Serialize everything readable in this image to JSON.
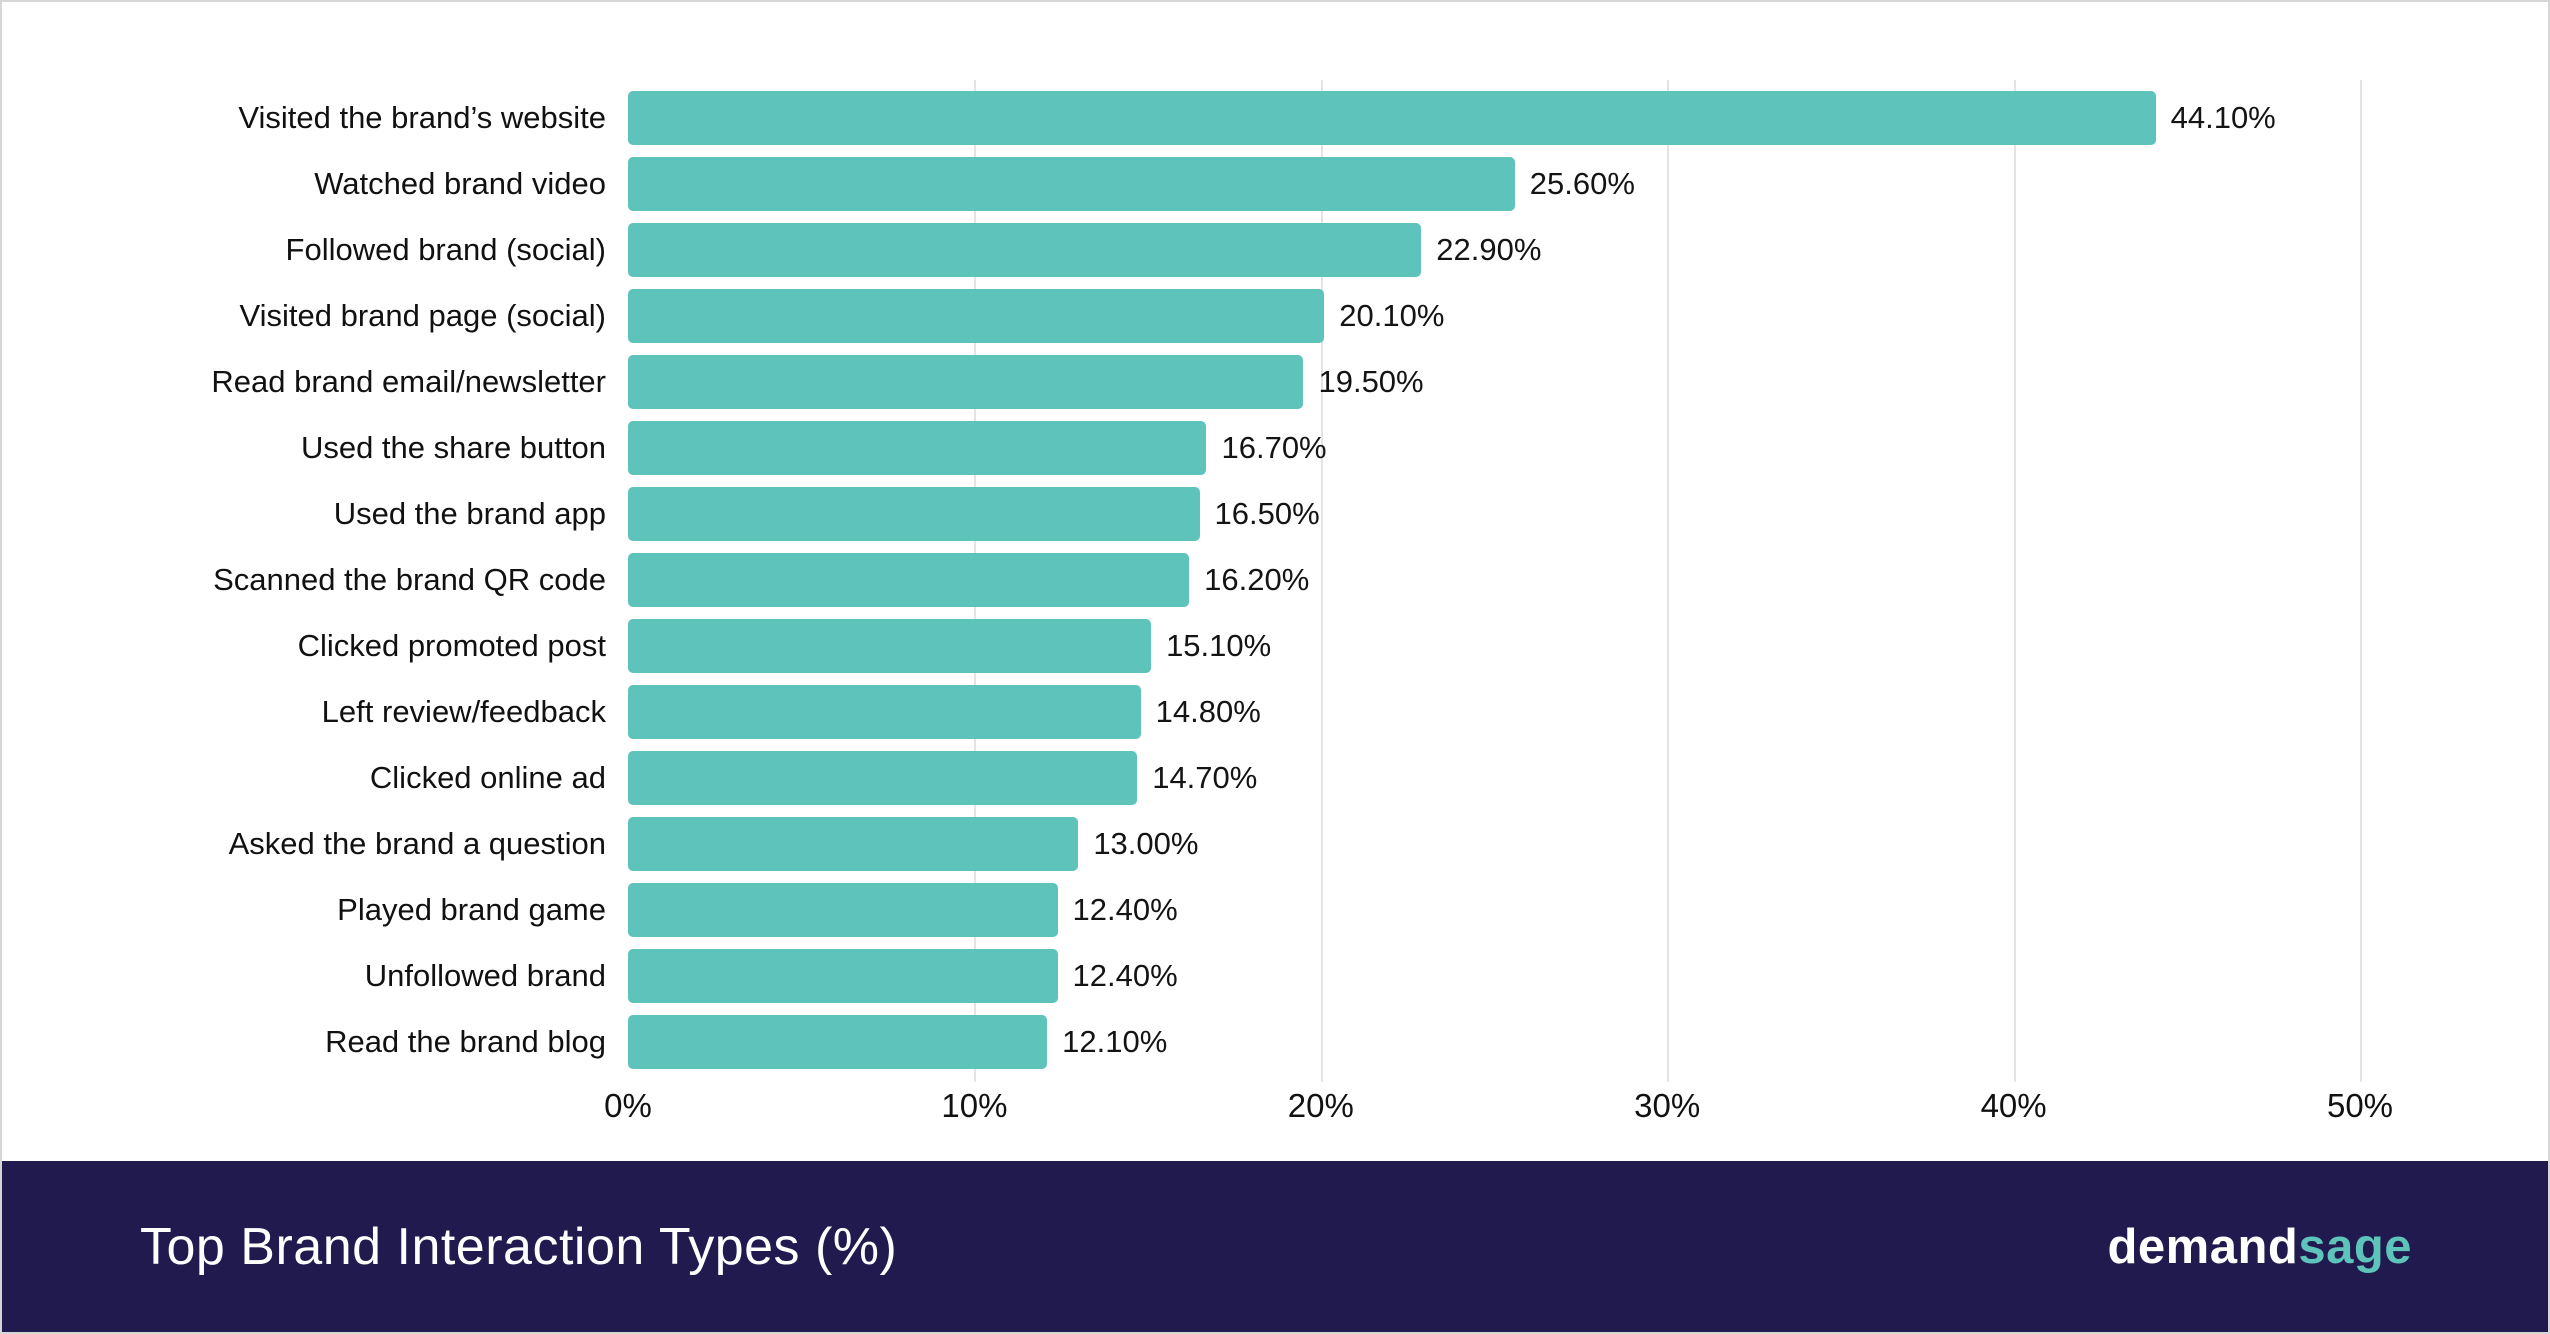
{
  "chart_data": {
    "type": "bar",
    "orientation": "horizontal",
    "title": "Top Brand Interaction Types (%)",
    "categories": [
      "Visited the brand’s website",
      "Watched brand video",
      "Followed brand (social)",
      "Visited brand page (social)",
      "Read brand email/newsletter",
      "Used the share button",
      "Used the brand app",
      "Scanned the brand QR code",
      "Clicked promoted post",
      "Left review/feedback",
      "Clicked online ad",
      "Asked the brand a question",
      "Played brand game",
      "Unfollowed brand",
      "Read the brand blog"
    ],
    "values": [
      44.1,
      25.6,
      22.9,
      20.1,
      19.5,
      16.7,
      16.5,
      16.2,
      15.1,
      14.8,
      14.7,
      13.0,
      12.4,
      12.4,
      12.1
    ],
    "value_labels": [
      "44.10%",
      "25.60%",
      "22.90%",
      "20.10%",
      "19.50%",
      "16.70%",
      "16.50%",
      "16.20%",
      "15.10%",
      "14.80%",
      "14.70%",
      "13.00%",
      "12.40%",
      "12.40%",
      "12.10%"
    ],
    "x_ticks": [
      "0%",
      "10%",
      "20%",
      "30%",
      "40%",
      "50%"
    ],
    "xlim": [
      0,
      50
    ],
    "grid": true,
    "bar_color": "#5ec3bb"
  },
  "footer": {
    "title": "Top Brand Interaction Types (%)",
    "logo_part1": "demand",
    "logo_part2": "sage"
  },
  "colors": {
    "bar": "#5ec3bb",
    "footer_background": "#201a4e",
    "gridline": "#e4e4e4",
    "text": "#111111"
  }
}
